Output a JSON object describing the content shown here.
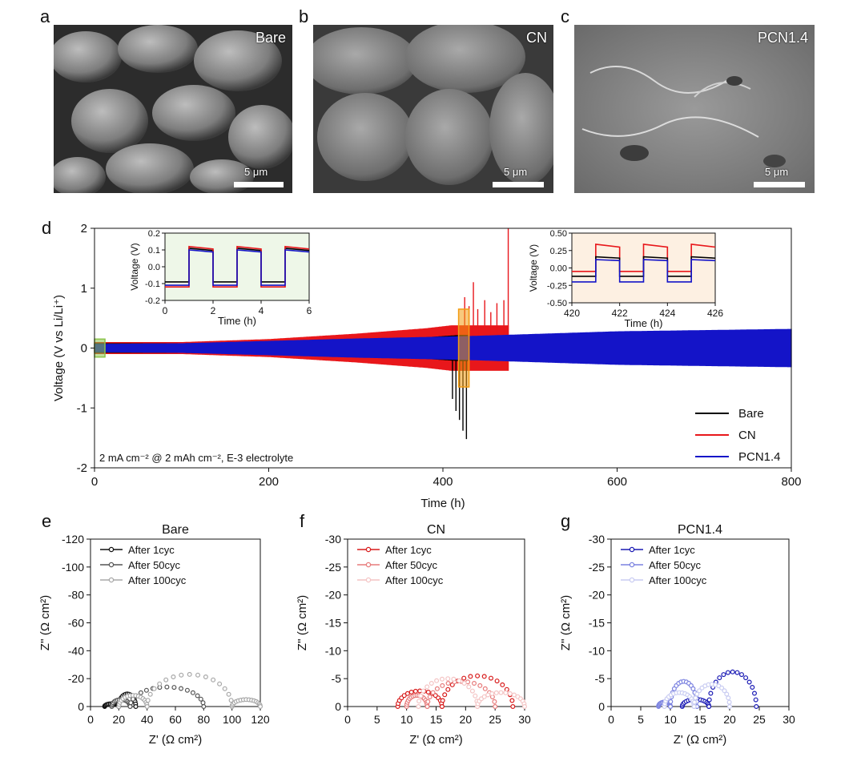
{
  "panels": {
    "a": {
      "letter": "a",
      "label": "Bare",
      "scale": "5 μm"
    },
    "b": {
      "letter": "b",
      "label": "CN",
      "scale": "5 μm"
    },
    "c": {
      "letter": "c",
      "label": "PCN1.4",
      "scale": "5 μm"
    },
    "d": {
      "letter": "d"
    },
    "e": {
      "letter": "e"
    },
    "f": {
      "letter": "f"
    },
    "g": {
      "letter": "g"
    }
  },
  "colors": {
    "bare": "#000000",
    "cn": "#e8171b",
    "pcn": "#1414c8",
    "inset1_bg": "#eef7e8",
    "inset2_bg": "#fdf0e2"
  },
  "chart_data": [
    {
      "id": "d",
      "type": "line",
      "title": "",
      "xlabel": "Time (h)",
      "ylabel": "Voltage (V vs Li/Li⁺)",
      "xlim": [
        0,
        800
      ],
      "ylim": [
        -2,
        2
      ],
      "xticks": [
        "0",
        "200",
        "400",
        "600",
        "800"
      ],
      "yticks": [
        "-2",
        "-1",
        "0",
        "1",
        "2"
      ],
      "annotation": "2 mA cm⁻² @ 2 mAh cm⁻², E-3 electrolyte",
      "legend_position": "bottom-right",
      "series": [
        {
          "name": "Bare",
          "color": "#000000",
          "envelope": [
            [
              0,
              0.08
            ],
            [
              100,
              0.08
            ],
            [
              200,
              0.1
            ],
            [
              300,
              0.13
            ],
            [
              380,
              0.18
            ],
            [
              420,
              0.22
            ],
            [
              428,
              0.22
            ]
          ],
          "spikes": [
            [
              411,
              -0.85
            ],
            [
              415,
              -1.05
            ],
            [
              419,
              -1.2
            ],
            [
              423,
              -1.38
            ],
            [
              427,
              -1.52
            ]
          ]
        },
        {
          "name": "CN",
          "color": "#e8171b",
          "envelope": [
            [
              0,
              0.1
            ],
            [
              100,
              0.1
            ],
            [
              200,
              0.15
            ],
            [
              300,
              0.24
            ],
            [
              380,
              0.33
            ],
            [
              410,
              0.38
            ],
            [
              475,
              0.38
            ]
          ],
          "spikes": [
            [
              425,
              0.85
            ],
            [
              430,
              0.7
            ],
            [
              435,
              1.1
            ],
            [
              440,
              0.65
            ],
            [
              448,
              0.8
            ],
            [
              455,
              0.6
            ],
            [
              462,
              0.75
            ],
            [
              470,
              0.8
            ],
            [
              475,
              2.0
            ]
          ]
        },
        {
          "name": "PCN1.4",
          "color": "#1414c8",
          "envelope": [
            [
              0,
              0.07
            ],
            [
              100,
              0.08
            ],
            [
              200,
              0.12
            ],
            [
              300,
              0.16
            ],
            [
              428,
              0.2
            ],
            [
              600,
              0.28
            ],
            [
              800,
              0.32
            ]
          ],
          "spikes": []
        }
      ],
      "highlight_boxes": [
        {
          "x": [
            0,
            12
          ],
          "color": "#8bc34a"
        },
        {
          "x": [
            418,
            430
          ],
          "color": "#f39c12"
        }
      ],
      "insets": [
        {
          "xlabel": "Time (h)",
          "ylabel": "Voltage (V)",
          "xlim": [
            0,
            6
          ],
          "ylim": [
            -0.2,
            0.2
          ],
          "xticks": [
            "0",
            "2",
            "4",
            "6"
          ],
          "yticks": [
            "-0.2",
            "-0.1",
            "0.0",
            "0.1",
            "0.2"
          ],
          "period": 2,
          "start": 0
        },
        {
          "xlabel": "Time (h)",
          "ylabel": "Voltage (V)",
          "xlim": [
            420,
            426
          ],
          "ylim": [
            -0.5,
            0.5
          ],
          "xticks": [
            "420",
            "422",
            "424",
            "426"
          ],
          "yticks": [
            "-0.50",
            "-0.25",
            "0.00",
            "0.25",
            "0.50"
          ],
          "period": 2,
          "start": 420
        }
      ]
    },
    {
      "id": "e",
      "type": "scatter",
      "title": "Bare",
      "xlabel": "Z' (Ω cm²)",
      "ylabel": "Z'' (Ω cm²)",
      "xlim": [
        0,
        120
      ],
      "ylim": [
        0,
        -120
      ],
      "xticks": [
        "0",
        "20",
        "40",
        "60",
        "80",
        "100",
        "120"
      ],
      "yticks": [
        "0",
        "-20",
        "-40",
        "-60",
        "-80",
        "-100",
        "-120"
      ],
      "legend_position": "top-left",
      "series": [
        {
          "name": "After 1cyc",
          "color": "#111111",
          "arcs": [
            [
              10,
              20,
              2
            ],
            [
              20,
              32,
              9
            ]
          ]
        },
        {
          "name": "After 50cyc",
          "color": "#555555",
          "arcs": [
            [
              15,
              28,
              5
            ],
            [
              28,
              80,
              14
            ]
          ]
        },
        {
          "name": "After 100cyc",
          "color": "#a8a8a8",
          "arcs": [
            [
              20,
              40,
              8
            ],
            [
              40,
              100,
              23
            ],
            [
              100,
              120,
              5
            ]
          ]
        }
      ]
    },
    {
      "id": "f",
      "type": "scatter",
      "title": "CN",
      "xlabel": "Z' (Ω cm²)",
      "ylabel": "Z'' (Ω cm²)",
      "xlim": [
        0,
        30
      ],
      "ylim": [
        0,
        -30
      ],
      "xticks": [
        "0",
        "5",
        "10",
        "15",
        "20",
        "25",
        "30"
      ],
      "yticks": [
        "0",
        "-5",
        "-10",
        "-15",
        "-20",
        "-25",
        "-30"
      ],
      "legend_position": "top-left",
      "series": [
        {
          "name": "After 1cyc",
          "color": "#d81b1b",
          "arcs": [
            [
              8.5,
              16,
              2.8
            ],
            [
              16,
              28,
              5.5
            ]
          ]
        },
        {
          "name": "After 50cyc",
          "color": "#e77b7b",
          "arcs": [
            [
              10,
              13.5,
              2
            ],
            [
              13.5,
              25,
              4.5
            ]
          ]
        },
        {
          "name": "After 100cyc",
          "color": "#f4c4c4",
          "arcs": [
            [
              12,
              22,
              5
            ],
            [
              22,
              30,
              2.5
            ]
          ]
        }
      ]
    },
    {
      "id": "g",
      "type": "scatter",
      "title": "PCN1.4",
      "xlabel": "Z' (Ω cm²)",
      "ylabel": "Z'' (Ω cm²)",
      "xlim": [
        0,
        30
      ],
      "ylim": [
        0,
        -30
      ],
      "xticks": [
        "0",
        "5",
        "10",
        "15",
        "20",
        "25",
        "30"
      ],
      "yticks": [
        "0",
        "-5",
        "-10",
        "-15",
        "-20",
        "-25",
        "-30"
      ],
      "legend_position": "top-left",
      "series": [
        {
          "name": "After 1cyc",
          "color": "#1a1ab4",
          "arcs": [
            [
              12,
              16.5,
              1.3
            ],
            [
              16.5,
              24.5,
              6.2
            ]
          ]
        },
        {
          "name": "After 50cyc",
          "color": "#7b82e0",
          "arcs": [
            [
              8,
              10,
              0.8
            ],
            [
              10,
              14.5,
              4.5
            ]
          ]
        },
        {
          "name": "After 100cyc",
          "color": "#c9ccf2",
          "arcs": [
            [
              9,
              14,
              2.5
            ],
            [
              14,
              20,
              4
            ]
          ]
        }
      ]
    }
  ]
}
